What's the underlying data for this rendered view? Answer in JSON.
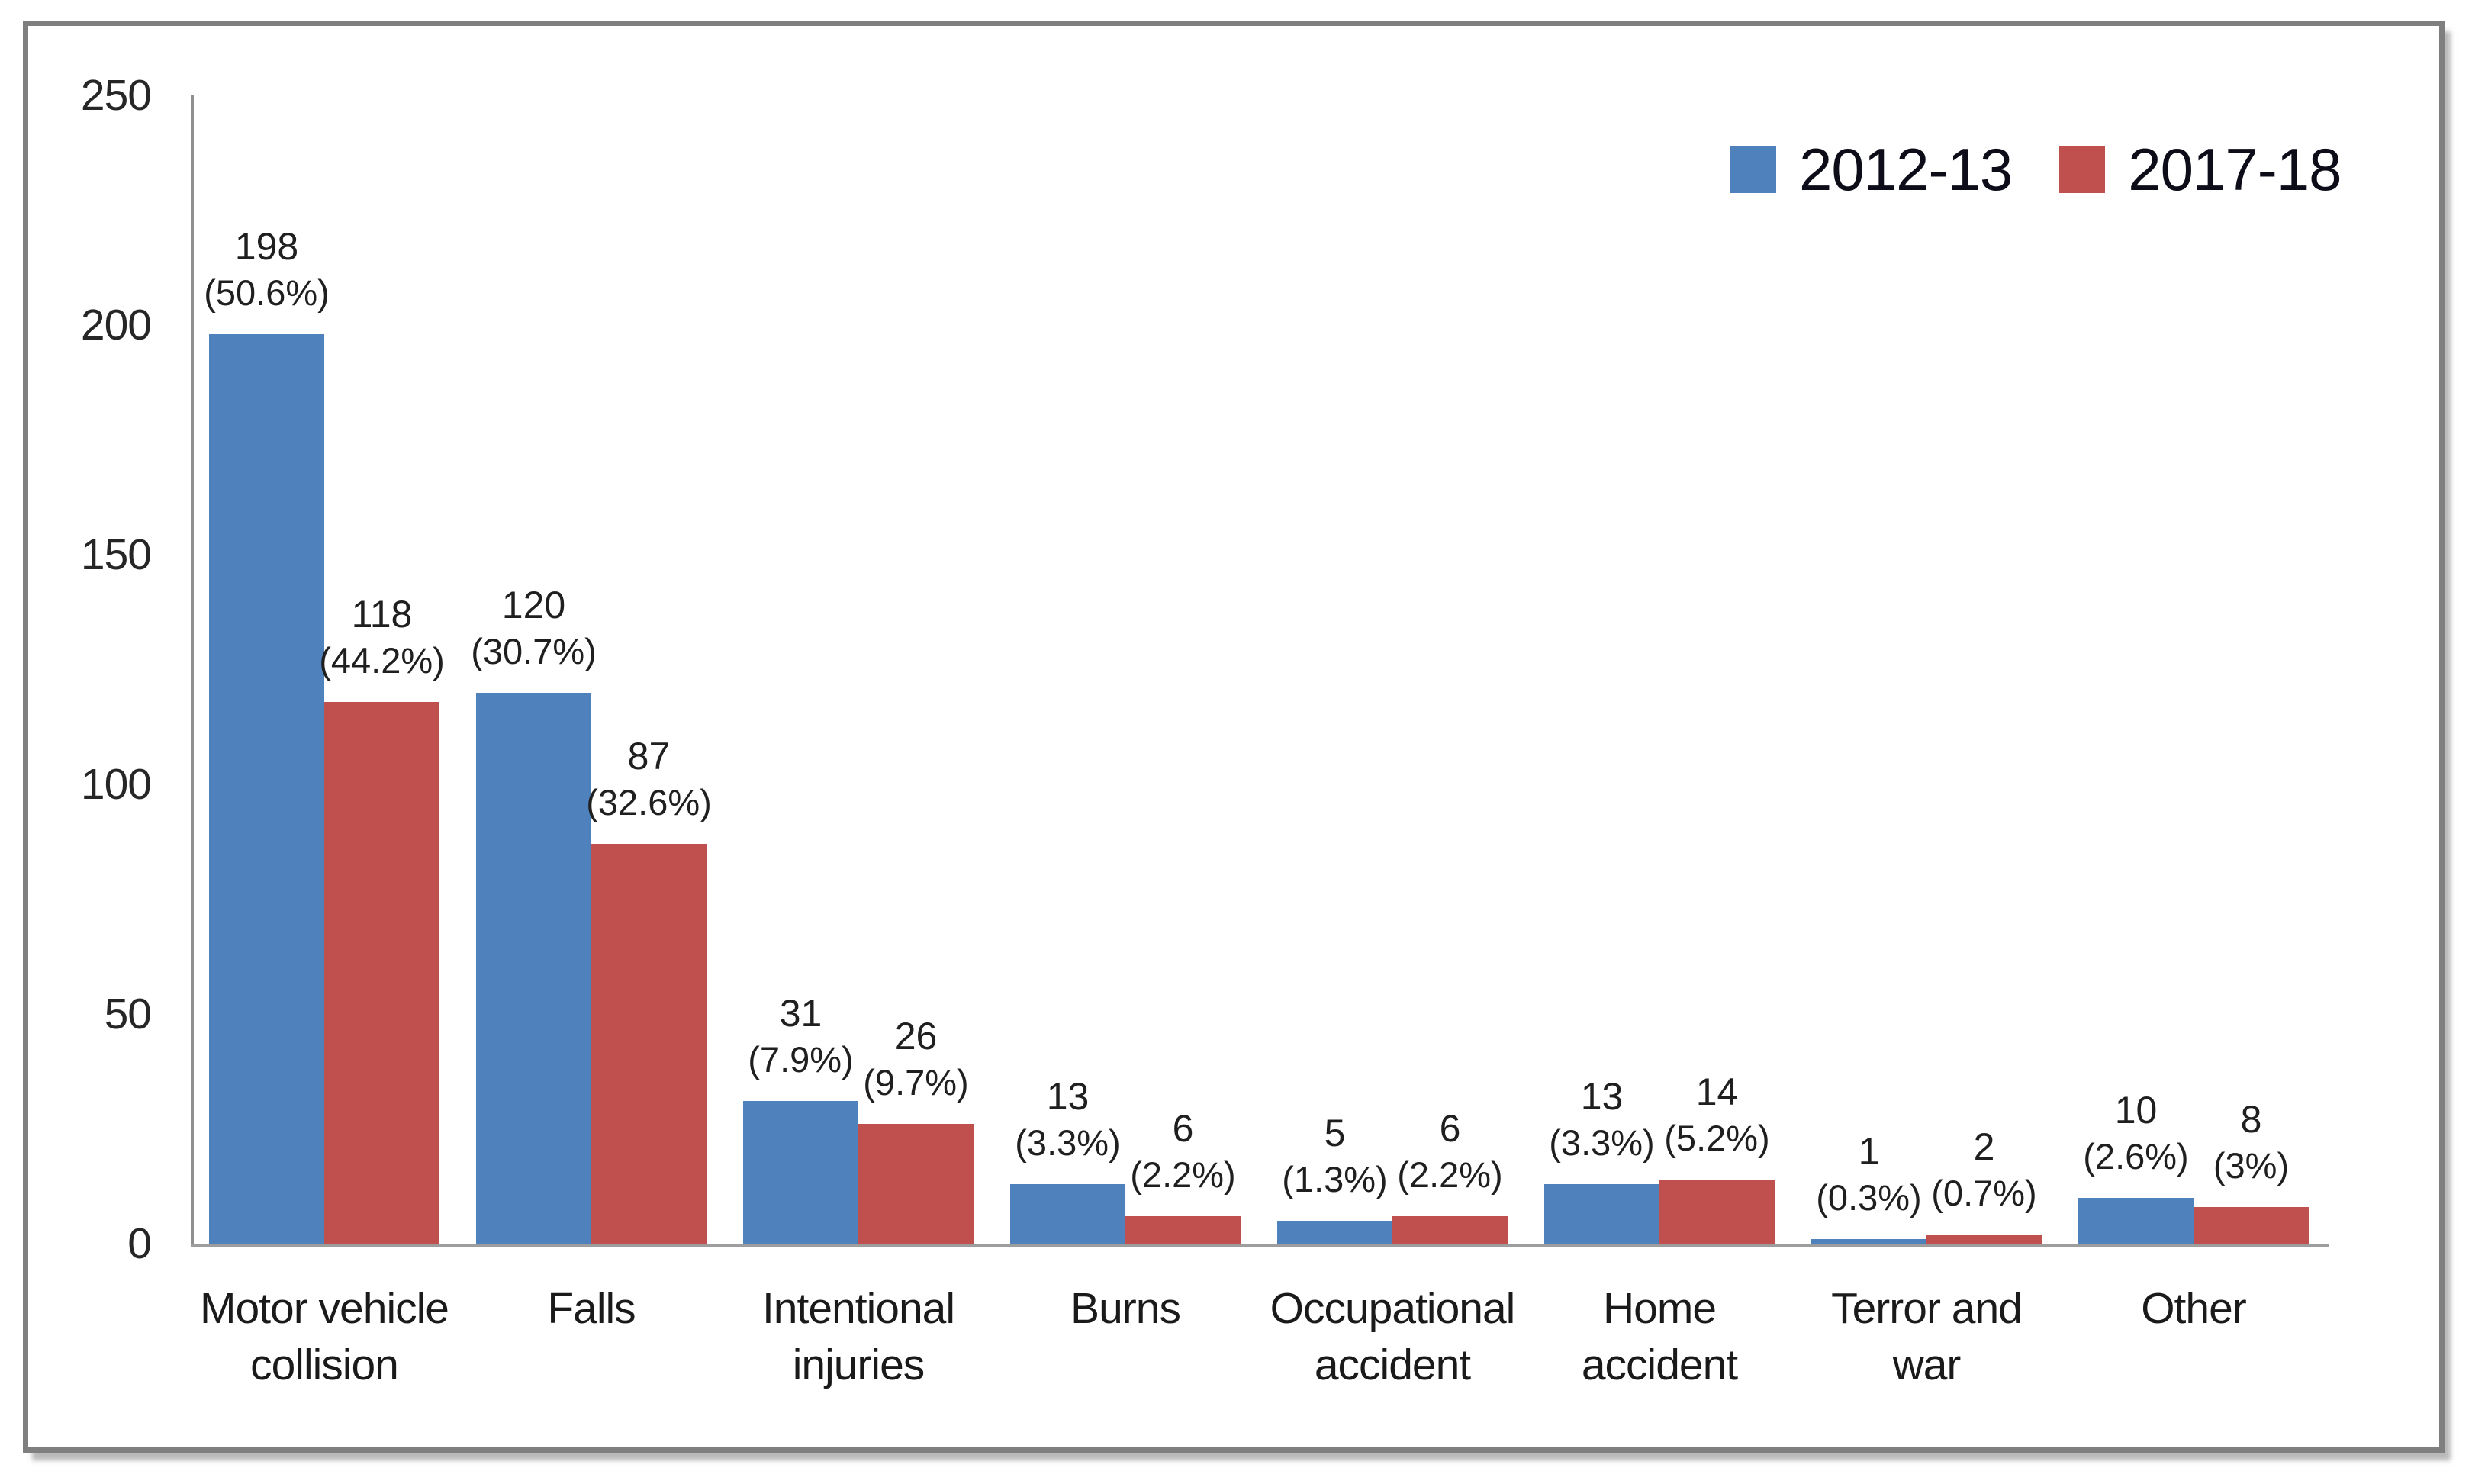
{
  "chart_data": {
    "type": "bar",
    "title": "",
    "xlabel": "",
    "ylabel": "",
    "categories": [
      "Motor vehicle collision",
      "Falls",
      "Intentional injuries",
      "Burns",
      "Occupational accident",
      "Home accident",
      "Terror and war",
      "Other"
    ],
    "category_label_lines": [
      [
        "Motor vehicle",
        "collision"
      ],
      [
        "Falls"
      ],
      [
        "Intentional",
        "injuries"
      ],
      [
        "Burns"
      ],
      [
        "Occupational",
        "accident"
      ],
      [
        "Home",
        "accident"
      ],
      [
        "Terror and",
        "war"
      ],
      [
        "Other"
      ]
    ],
    "series": [
      {
        "name": "2012-13",
        "color": "#4F81BD",
        "values": [
          198,
          120,
          31,
          13,
          5,
          13,
          1,
          10
        ],
        "percent_labels": [
          "(50.6%)",
          "(30.7%)",
          "(7.9%)",
          "(3.3%)",
          "(1.3%)",
          "(3.3%)",
          "(0.3%)",
          "(2.6%)"
        ]
      },
      {
        "name": "2017-18",
        "color": "#C0504D",
        "values": [
          118,
          87,
          26,
          6,
          6,
          14,
          2,
          8
        ],
        "percent_labels": [
          "(44.2%)",
          "(32.6%)",
          "(9.7%)",
          "(2.2%)",
          "(2.2%)",
          "(5.2%)",
          "(0.7%)",
          "(3%)"
        ]
      }
    ],
    "ylim": [
      0,
      250
    ],
    "y_ticks": [
      0,
      50,
      100,
      150,
      200,
      250
    ],
    "grid": false,
    "legend_position": "top-right",
    "value_label_format": "count above, percent in parentheses below"
  },
  "style": {
    "frame_border_color": "#7f7f7f",
    "axis_line_color": "#9d9d9d",
    "text_color": "#1f1f1f",
    "background": "#ffffff"
  }
}
